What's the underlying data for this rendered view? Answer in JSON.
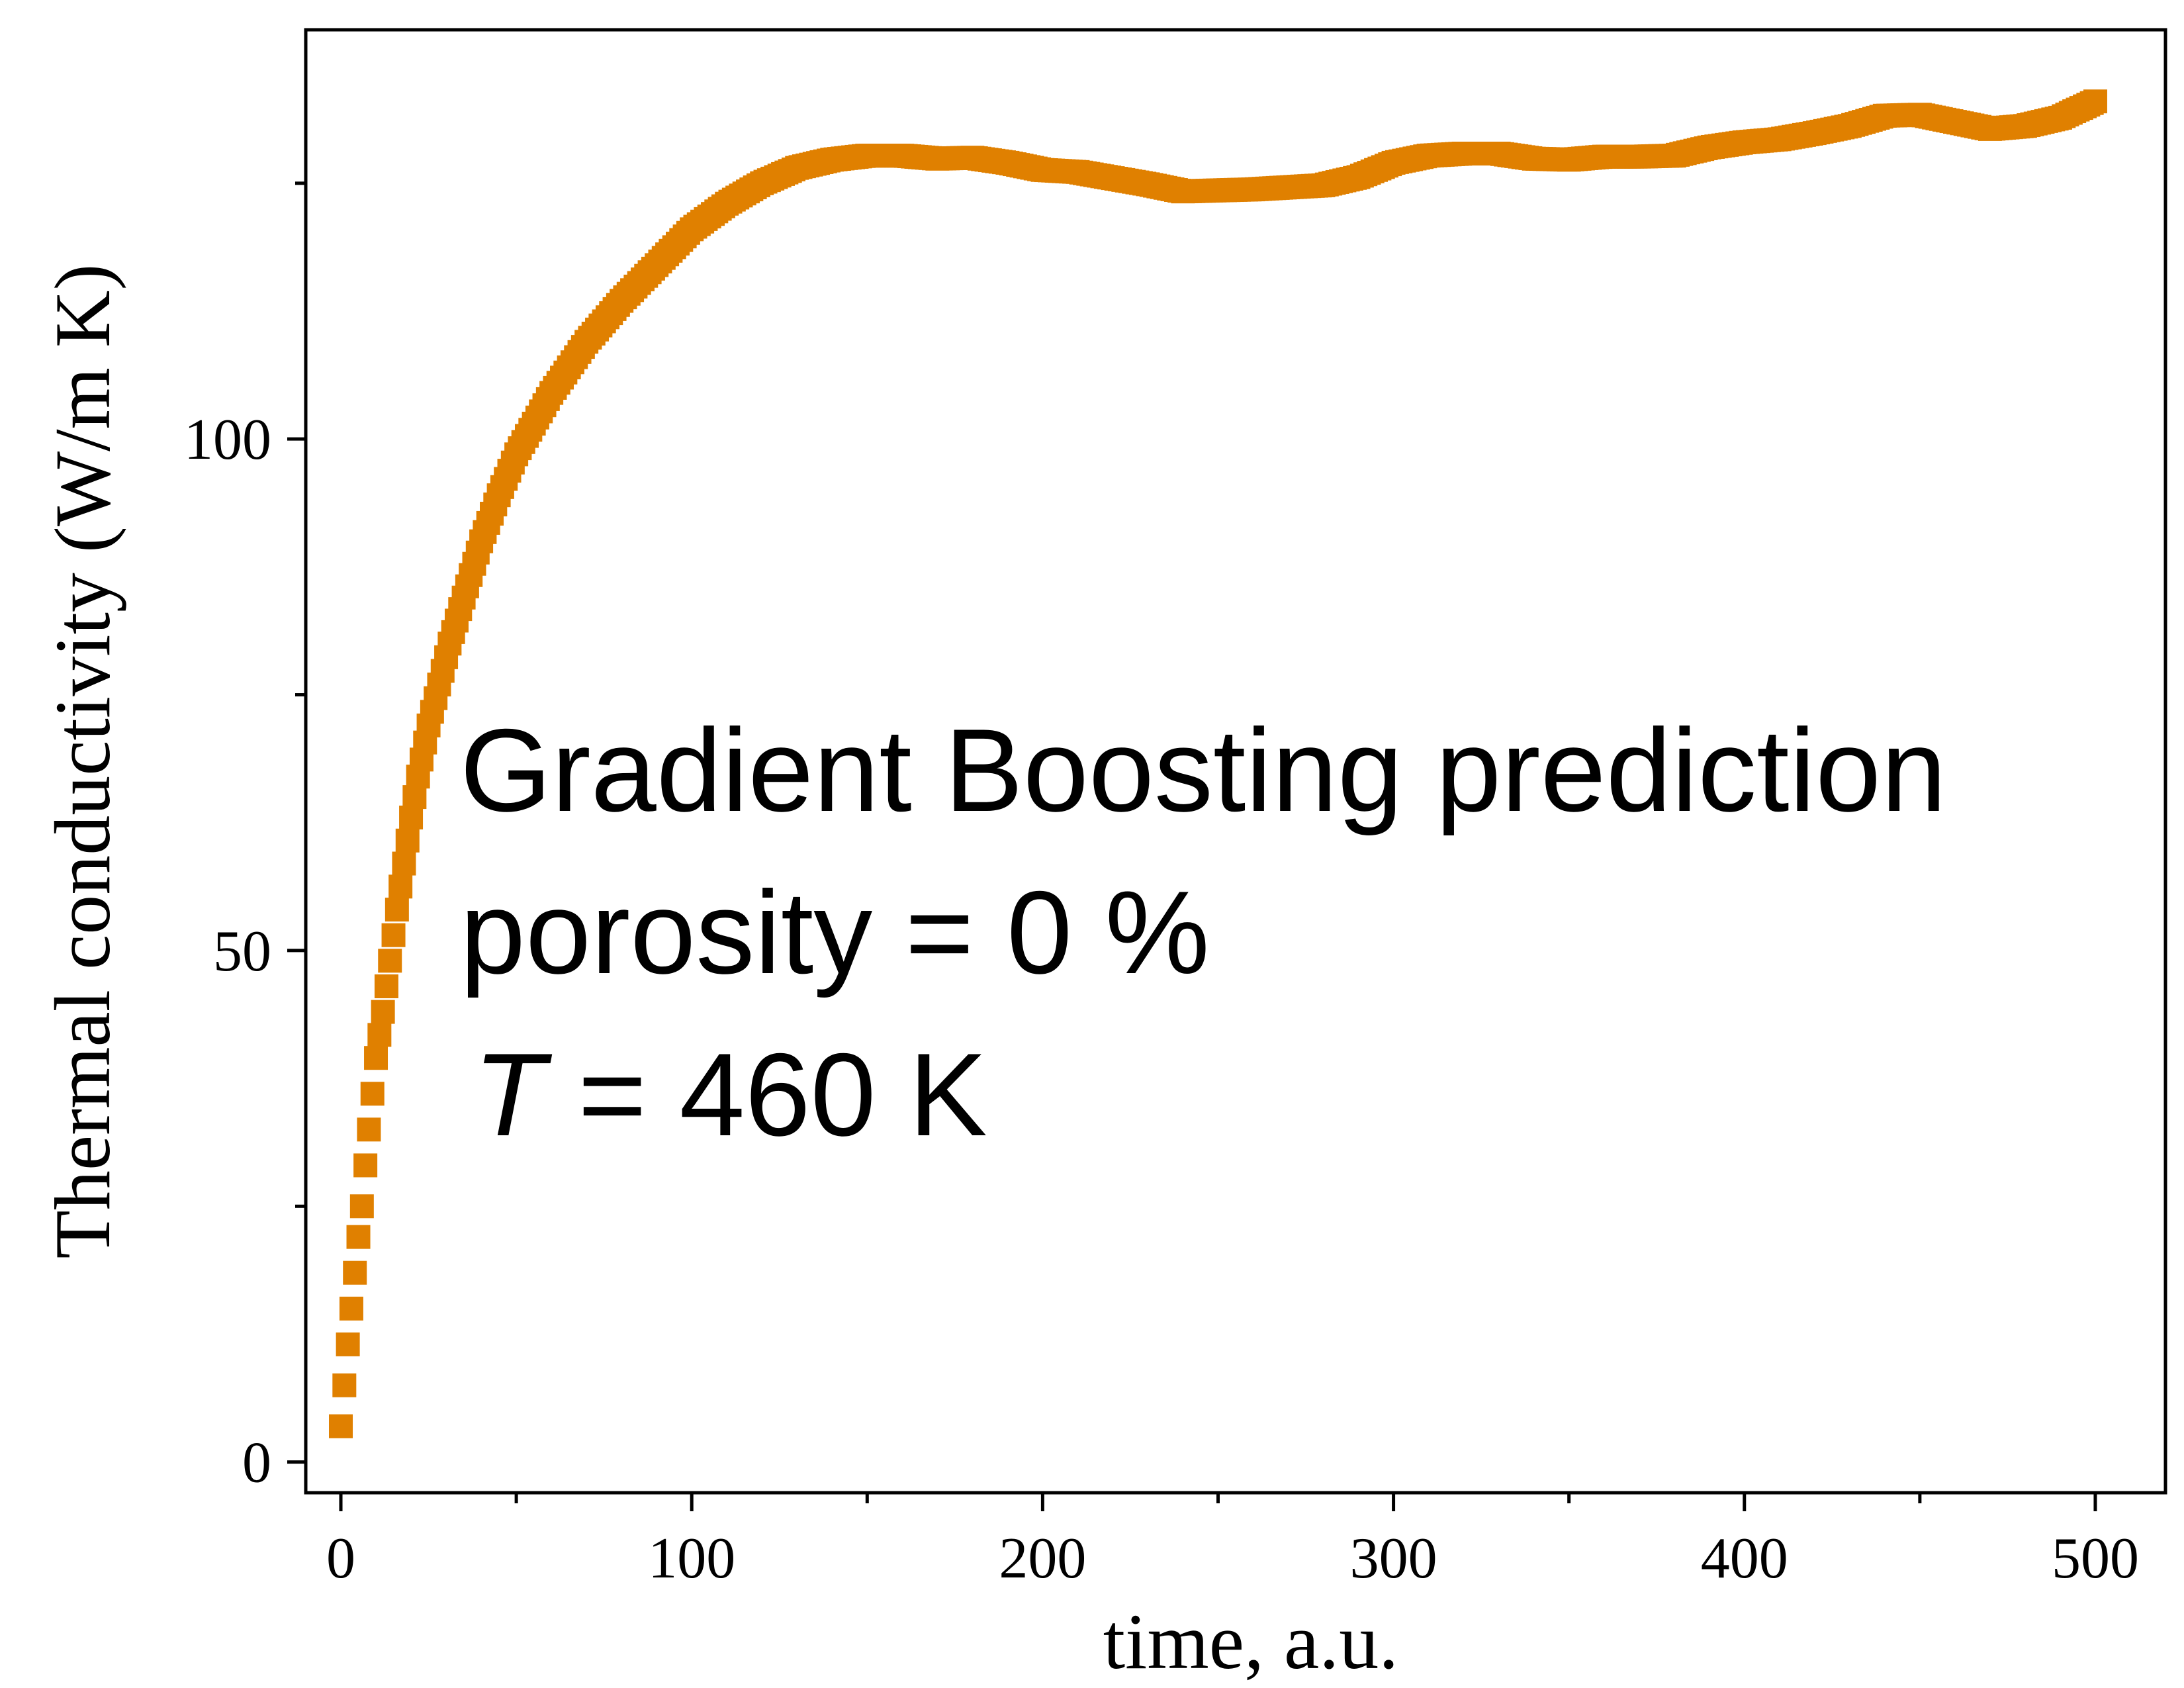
{
  "chart_data": {
    "type": "scatter",
    "title": "",
    "xlabel": "time, a.u.",
    "ylabel": "Thermal conductivity (W/m K)",
    "xlim": [
      -10,
      520
    ],
    "ylim": [
      -3,
      140
    ],
    "x_ticks": [
      0,
      100,
      200,
      300,
      400,
      500
    ],
    "x_tick_labels": [
      "0",
      "100",
      "200",
      "300",
      "400",
      "500"
    ],
    "y_ticks": [
      0,
      50,
      100
    ],
    "y_tick_labels": [
      "0",
      "50",
      "100"
    ],
    "grid": false,
    "legend": "none",
    "marker": "square",
    "color": "#E08000",
    "series": [
      {
        "x": [
          0,
          1,
          2,
          3,
          4,
          5,
          6,
          7,
          8,
          9,
          10,
          12,
          14,
          16,
          18,
          20,
          22,
          25,
          28,
          31,
          35,
          40,
          45,
          50,
          55,
          60,
          65,
          70,
          80,
          90,
          100,
          110,
          120,
          130,
          140,
          150,
          160,
          170,
          180,
          190,
          200,
          210,
          220,
          230,
          240,
          250,
          260,
          270,
          280,
          290,
          300,
          310,
          320,
          330,
          340,
          350,
          360,
          370,
          380,
          390,
          400,
          410,
          420,
          430,
          440,
          450,
          460,
          470,
          480,
          490,
          500
        ],
        "values": [
          3.5,
          7.5,
          11.5,
          15,
          18.5,
          22,
          25,
          29,
          32.5,
          36,
          39.5,
          44,
          49,
          54,
          58.5,
          63,
          67,
          72,
          76,
          80,
          84.5,
          90,
          94.5,
          98.5,
          101.5,
          104.5,
          107,
          109.5,
          113.5,
          117,
          120.5,
          123,
          125,
          126.5,
          127.3,
          127.7,
          127.7,
          127.4,
          127.5,
          127,
          126.3,
          126.1,
          125.5,
          124.9,
          124.2,
          124.3,
          124.4,
          124.6,
          124.8,
          125.6,
          127,
          127.7,
          127.9,
          127.9,
          127.4,
          127.3,
          127.6,
          127.6,
          127.7,
          128.5,
          129,
          129.3,
          129.9,
          130.6,
          131.6,
          131.7,
          131,
          130.3,
          130.6,
          131.4,
          133
        ]
      }
    ]
  },
  "annotation": {
    "line1": "Gradient Boosting prediction",
    "line2": "porosity = 0 %",
    "line3_italic": "T",
    "line3_rest": " = 460 K"
  }
}
